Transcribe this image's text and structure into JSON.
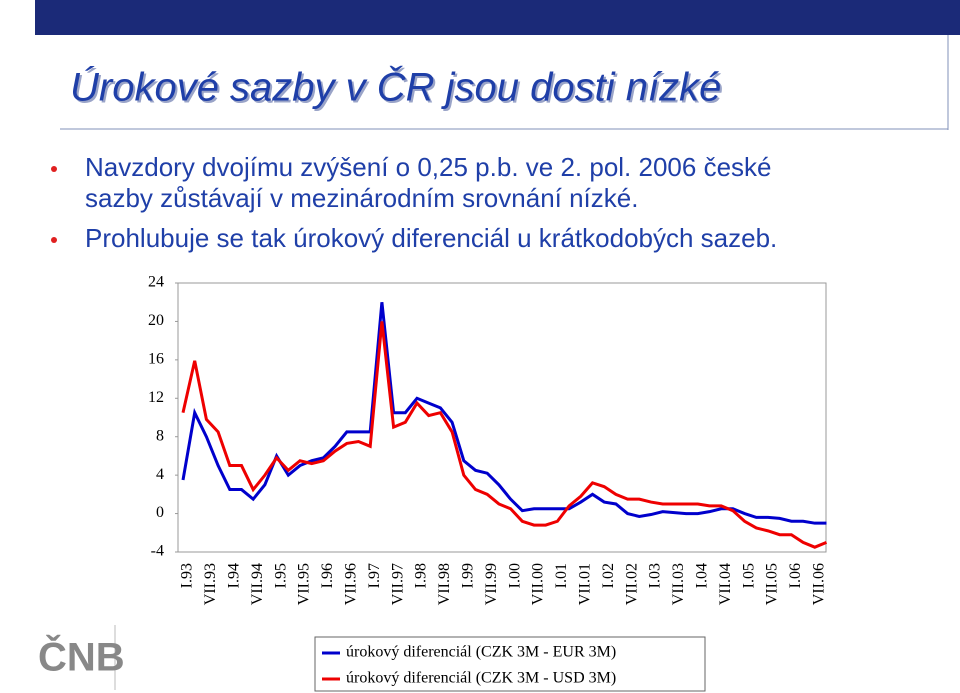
{
  "header": {
    "title": "Úrokové sazby v ČR jsou dosti nízké"
  },
  "bullets": [
    "Navzdory dvojímu zvýšení o 0,25 p.b. ve 2. pol. 2006 české",
    "sazby zůstávají v mezinárodním srovnání nízké.",
    "Prohlubuje se tak úrokový diferenciál u krátkodobých sazeb."
  ],
  "logo": "ČNB",
  "chart_data": {
    "type": "line",
    "categories": [
      "I.93",
      null,
      "VII.93",
      null,
      "I.94",
      null,
      "VII.94",
      null,
      "I.95",
      null,
      "VII.95",
      null,
      "I.96",
      null,
      "VII.96",
      null,
      "I.97",
      null,
      "VII.97",
      null,
      "I.98",
      null,
      "VII.98",
      null,
      "I.99",
      null,
      "VII.99",
      null,
      "I.00",
      null,
      "VII.00",
      null,
      "I.01",
      null,
      "VII.01",
      null,
      "I.02",
      null,
      "VII.02",
      null,
      "I.03",
      null,
      "VII.03",
      null,
      "I.04",
      null,
      "VII.04",
      null,
      "I.05",
      null,
      "VII.05",
      null,
      "I.06",
      null,
      "VII.06",
      null
    ],
    "series": [
      {
        "name": "úrokový diferenciál (CZK 3M - EUR 3M)",
        "color": "#0000cc",
        "values": [
          3.5,
          10.5,
          8,
          5,
          2.5,
          2.5,
          1.5,
          3,
          6,
          4,
          5,
          5.5,
          5.8,
          7,
          8.5,
          8.5,
          8.5,
          22,
          10.5,
          10.5,
          12,
          11.5,
          11,
          9.5,
          5.5,
          4.5,
          4.2,
          3,
          1.5,
          0.3,
          0.5,
          0.5,
          0.5,
          0.5,
          1.2,
          2,
          1.2,
          1,
          0,
          -0.3,
          -0.1,
          0.2,
          0.1,
          0,
          0,
          0.2,
          0.5,
          0.5,
          0,
          -0.4,
          -0.4,
          -0.5,
          -0.8,
          -0.8,
          -1,
          -1
        ]
      },
      {
        "name": "úrokový diferenciál (CZK 3M - USD 3M)",
        "color": "#ee0000",
        "values": [
          10.5,
          15.9,
          9.8,
          8.5,
          5,
          5,
          2.5,
          4,
          5.8,
          4.5,
          5.5,
          5.2,
          5.5,
          6.5,
          7.3,
          7.5,
          7,
          20,
          9,
          9.5,
          11.5,
          10.2,
          10.5,
          8.5,
          4,
          2.5,
          2,
          1,
          0.5,
          -0.8,
          -1.2,
          -1.2,
          -0.8,
          0.8,
          1.8,
          3.2,
          2.8,
          2,
          1.5,
          1.5,
          1.2,
          1,
          1,
          1,
          1,
          0.8,
          0.8,
          0.3,
          -0.8,
          -1.5,
          -1.8,
          -2.2,
          -2.2,
          -3,
          -3.5,
          -3
        ]
      }
    ],
    "ylim": [
      -4,
      24
    ],
    "yticks": [
      24,
      20,
      16,
      12,
      8,
      4,
      0,
      -4
    ],
    "grid": false
  }
}
